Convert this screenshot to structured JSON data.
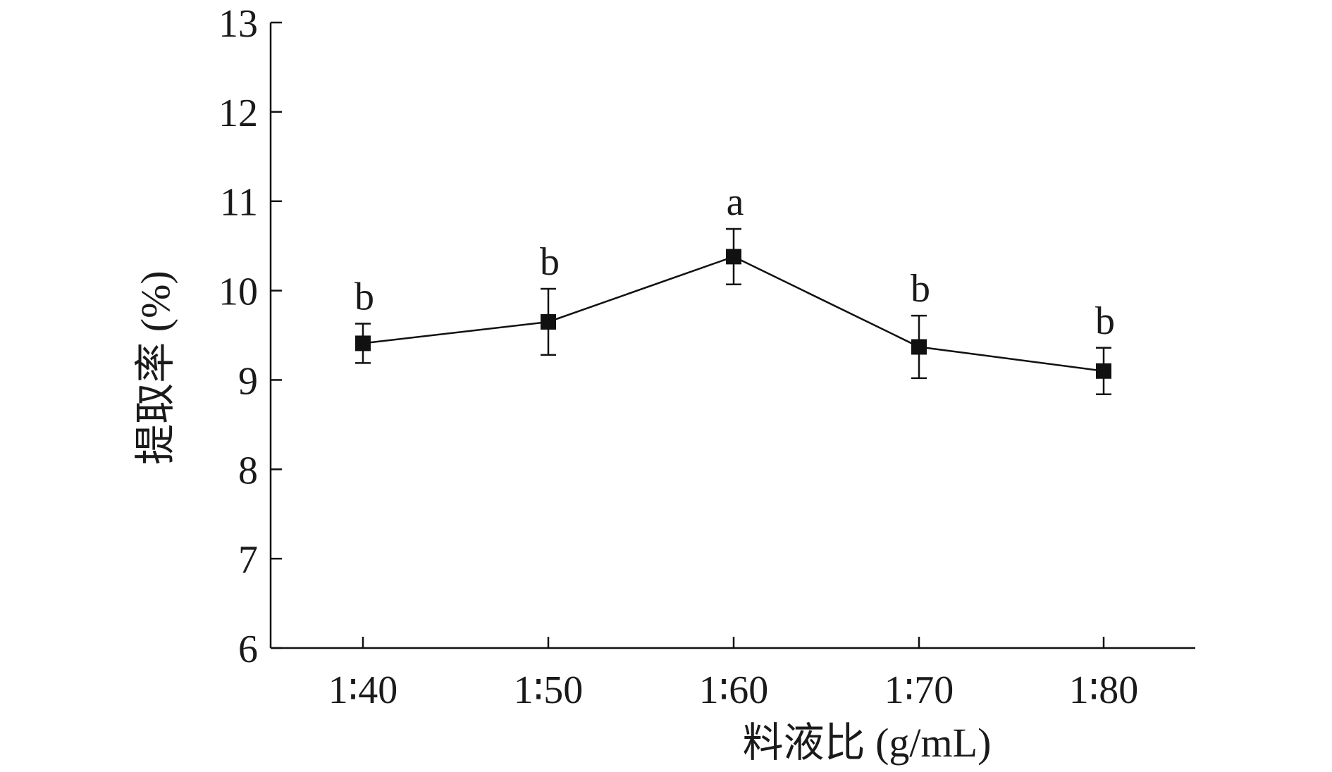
{
  "chart_data": {
    "type": "line",
    "xlabel": "料液比 (g/mL)",
    "ylabel": "提取率 (%)",
    "categories": [
      "1∶40",
      "1∶50",
      "1∶60",
      "1∶70",
      "1∶80"
    ],
    "ylim": [
      6,
      13
    ],
    "yticks": [
      6,
      7,
      8,
      9,
      10,
      11,
      12,
      13
    ],
    "grid": false,
    "series": [
      {
        "values": [
          9.41,
          9.65,
          10.38,
          9.37,
          9.1
        ],
        "errors": [
          0.22,
          0.37,
          0.31,
          0.35,
          0.26
        ],
        "significance": [
          "b",
          "b",
          "a",
          "b",
          "b"
        ],
        "color": "#111111",
        "marker": "square"
      }
    ]
  }
}
